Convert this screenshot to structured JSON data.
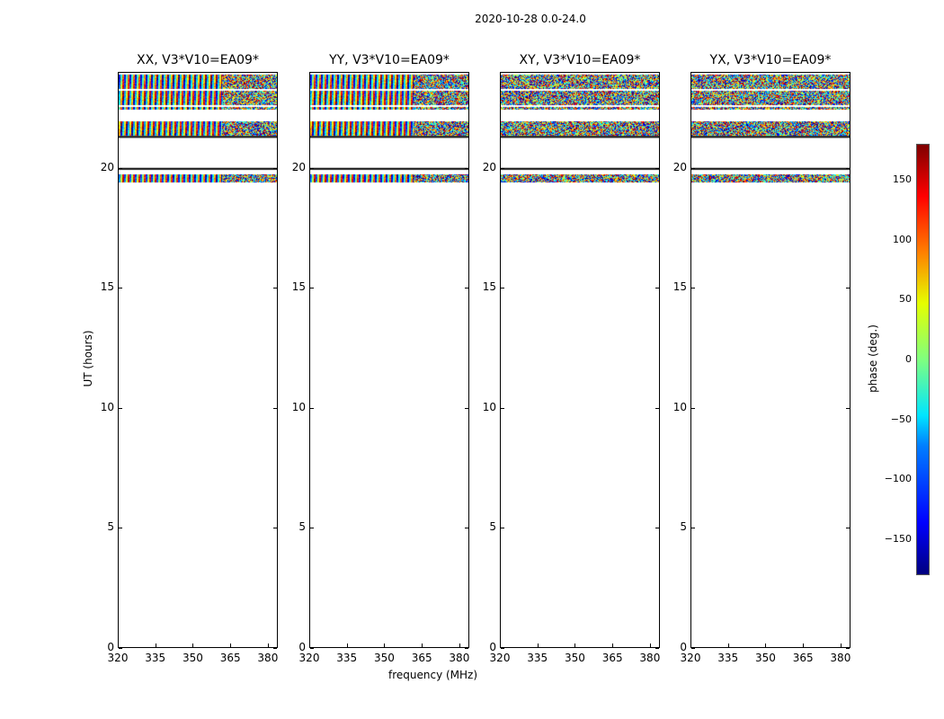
{
  "chart_data": {
    "type": "heatmap",
    "title": "2020-10-28 0.0-24.0",
    "xlabel": "frequency (MHz)",
    "ylabel": "UT (hours)",
    "xlim": [
      320,
      384
    ],
    "ylim": [
      0,
      24
    ],
    "xticks": [
      "320",
      "335",
      "350",
      "365",
      "380"
    ],
    "xtick_values": [
      320,
      335,
      350,
      365,
      380
    ],
    "yticks": [
      "0",
      "5",
      "10",
      "15",
      "20"
    ],
    "ytick_values": [
      0,
      5,
      10,
      15,
      20
    ],
    "panels": [
      {
        "title": "XX, V3*V10=EA09*",
        "pattern": "fringe"
      },
      {
        "title": "YY, V3*V10=EA09*",
        "pattern": "fringe"
      },
      {
        "title": "XY, V3*V10=EA09*",
        "pattern": "noise"
      },
      {
        "title": "YX, V3*V10=EA09*",
        "pattern": "noise"
      }
    ],
    "data_bands_hours": [
      [
        19.4,
        19.75
      ],
      [
        21.35,
        21.95
      ],
      [
        22.45,
        23.98
      ]
    ],
    "flag_lines_hours": [
      20.0,
      21.33
    ],
    "colorbar": {
      "label": "phase (deg.)",
      "range": [
        -180,
        180
      ],
      "ticks": [
        "150",
        "100",
        "50",
        "0",
        "−50",
        "−100",
        "−150"
      ],
      "tick_values": [
        150,
        100,
        50,
        0,
        -50,
        -100,
        -150
      ]
    }
  }
}
